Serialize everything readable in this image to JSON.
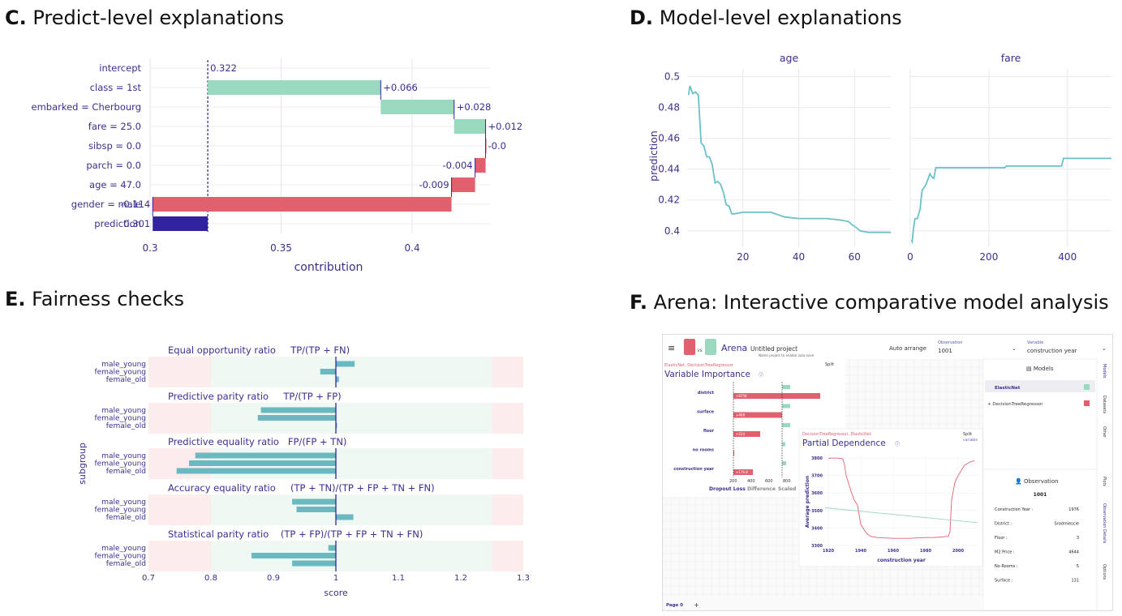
{
  "panels": {
    "c": {
      "letter": "C.",
      "title": "Predict-level explanations"
    },
    "d": {
      "letter": "D.",
      "title": "Model-level explanations"
    },
    "e": {
      "letter": "E.",
      "title": "Fairness checks"
    },
    "f": {
      "letter": "F.",
      "title": "Arena: Interactive comparative model analysis"
    }
  },
  "colors": {
    "positive": "#9ad9bf",
    "negative": "#e0606e",
    "prediction": "#3322a0",
    "text": "#3a2f8f",
    "line": "#6cc0c8",
    "fair_bar": "#6ab8c0"
  },
  "chart_data": [
    {
      "id": "breakdown",
      "type": "bar",
      "xlabel": "contribution",
      "xlim": [
        0.3,
        0.43
      ],
      "xticks": [
        "0.3",
        "0.35",
        "0.4"
      ],
      "xtick_values": [
        0.3,
        0.35,
        0.4
      ],
      "rows": [
        {
          "label": "intercept",
          "start": 0.322,
          "end": 0.322,
          "text": "0.322",
          "kind": "intercept"
        },
        {
          "label": "class = 1st",
          "start": 0.322,
          "end": 0.388,
          "text": "+0.066",
          "kind": "positive"
        },
        {
          "label": "embarked = Cherbourg",
          "start": 0.388,
          "end": 0.416,
          "text": "+0.028",
          "kind": "positive"
        },
        {
          "label": "fare = 25.0",
          "start": 0.416,
          "end": 0.428,
          "text": "+0.012",
          "kind": "positive"
        },
        {
          "label": "sibsp = 0.0",
          "start": 0.428,
          "end": 0.428,
          "text": "-0.0",
          "kind": "zero"
        },
        {
          "label": "parch = 0.0",
          "start": 0.428,
          "end": 0.424,
          "text": "-0.004",
          "kind": "negative"
        },
        {
          "label": "age = 47.0",
          "start": 0.424,
          "end": 0.415,
          "text": "-0.009",
          "kind": "negative"
        },
        {
          "label": "gender = male",
          "start": 0.415,
          "end": 0.301,
          "text": "-0.114",
          "kind": "negative"
        },
        {
          "label": "prediction",
          "start": 0.301,
          "end": 0.322,
          "text": "0.301",
          "kind": "prediction"
        }
      ]
    },
    {
      "id": "pdp",
      "type": "line",
      "ylabel": "prediction",
      "ylim": [
        0.392,
        0.505
      ],
      "yticks": [
        "0.4",
        "0.42",
        "0.44",
        "0.46",
        "0.48",
        "0.5"
      ],
      "ytick_values": [
        0.4,
        0.42,
        0.44,
        0.46,
        0.48,
        0.5
      ],
      "facets": [
        {
          "title": "age",
          "xlim": [
            0,
            73
          ],
          "xticks": [
            "20",
            "40",
            "60"
          ],
          "xtick_values": [
            20,
            40,
            60
          ],
          "x": [
            0.5,
            1,
            2,
            3,
            4,
            5,
            6,
            7,
            8,
            9,
            10,
            11,
            12,
            13,
            14,
            15,
            16,
            17,
            20,
            25,
            30,
            35,
            40,
            45,
            50,
            55,
            58,
            59,
            60,
            62,
            65,
            70,
            73
          ],
          "y": [
            0.488,
            0.494,
            0.489,
            0.49,
            0.488,
            0.457,
            0.455,
            0.448,
            0.448,
            0.443,
            0.431,
            0.432,
            0.43,
            0.425,
            0.417,
            0.416,
            0.411,
            0.411,
            0.412,
            0.412,
            0.412,
            0.409,
            0.408,
            0.408,
            0.408,
            0.407,
            0.406,
            0.404,
            0.403,
            0.4,
            0.399,
            0.399,
            0.399
          ]
        },
        {
          "title": "fare",
          "xlim": [
            0,
            512
          ],
          "xticks": [
            "0",
            "200",
            "400"
          ],
          "xtick_values": [
            0,
            200,
            400
          ],
          "x": [
            3,
            5,
            8,
            12,
            18,
            25,
            30,
            40,
            50,
            55,
            60,
            65,
            70,
            80,
            100,
            150,
            200,
            240,
            245,
            300,
            385,
            390,
            450,
            512
          ],
          "y": [
            0.394,
            0.393,
            0.401,
            0.408,
            0.408,
            0.414,
            0.426,
            0.43,
            0.437,
            0.435,
            0.434,
            0.441,
            0.441,
            0.441,
            0.441,
            0.441,
            0.441,
            0.441,
            0.442,
            0.442,
            0.442,
            0.447,
            0.447,
            0.447
          ]
        }
      ]
    },
    {
      "id": "fairness",
      "type": "bar",
      "xlabel": "score",
      "ylabel": "subgroup",
      "xlim": [
        0.7,
        1.3
      ],
      "xticks": [
        "0.7",
        "0.8",
        "0.9",
        "1",
        "1.1",
        "1.2",
        "1.3"
      ],
      "xtick_values": [
        0.7,
        0.8,
        0.9,
        1.0,
        1.1,
        1.2,
        1.3
      ],
      "fair_range": [
        0.8,
        1.25
      ],
      "subgroups": [
        "male_young",
        "female_young",
        "female_old"
      ],
      "metrics": [
        {
          "title": "Equal opportunity ratio     TP/(TP + FN)",
          "values": [
            1.03,
            0.975,
            1.005
          ]
        },
        {
          "title": "Predictive parity ratio     TP/(TP + FP)",
          "values": [
            0.88,
            0.875,
            1.0
          ]
        },
        {
          "title": "Predictive equality ratio   FP/(FP + TN)",
          "values": [
            0.775,
            0.765,
            0.745
          ]
        },
        {
          "title": "Accuracy equality ratio     (TP + TN)/(TP + FP + TN + FN)",
          "values": [
            0.93,
            0.937,
            1.028
          ]
        },
        {
          "title": "Statistical parity ratio    (TP + FP)/(TP + FP + TN + FN)",
          "values": [
            0.988,
            0.865,
            0.93
          ]
        }
      ]
    },
    {
      "id": "arena-importance",
      "type": "bar",
      "title": "Variable Importance",
      "categories": [
        "district",
        "surface",
        "floor",
        "no rooms",
        "construction year"
      ],
      "series": [
        {
          "name": "ElasticNet",
          "values": [
            null,
            null,
            null,
            null,
            null
          ]
        },
        {
          "name": "DecisionTreeRegressor",
          "values": [
            null,
            null,
            null,
            null,
            null
          ]
        }
      ],
      "red_labels": [
        "+875K",
        "+408",
        "+224",
        "",
        "+176.8"
      ],
      "xticks": [
        "200",
        "400",
        "600",
        "800"
      ]
    },
    {
      "id": "arena-pdp",
      "type": "line",
      "title": "Partial Dependence",
      "xlabel": "construction year",
      "ylabel": "Average prediction",
      "xticks": [
        "1920",
        "1940",
        "1960",
        "1980",
        "2000"
      ],
      "yticks": [
        "3300",
        "3400",
        "3500",
        "3600",
        "3700",
        "3800"
      ],
      "xlim": [
        1918,
        2012
      ],
      "ylim": [
        3290,
        3810
      ],
      "series": [
        {
          "name": "DecisionTreeRegressor",
          "x": [
            1920,
            1922,
            1926,
            1929,
            1930,
            1931,
            1934,
            1936,
            1938,
            1940,
            1942,
            1944,
            1946,
            1950,
            1960,
            1970,
            1980,
            1985,
            1990,
            1992,
            1994,
            1995,
            1996,
            1998,
            2000,
            2002,
            2004,
            2006,
            2008,
            2010
          ],
          "y": [
            3797,
            3800,
            3800,
            3795,
            3760,
            3700,
            3610,
            3560,
            3530,
            3420,
            3390,
            3365,
            3352,
            3345,
            3340,
            3340,
            3345,
            3345,
            3348,
            3350,
            3352,
            3380,
            3560,
            3660,
            3700,
            3730,
            3760,
            3770,
            3780,
            3785
          ]
        },
        {
          "name": "ElasticNet",
          "x": [
            1918,
            2012
          ],
          "y": [
            3515,
            3430
          ]
        }
      ]
    }
  ],
  "arena": {
    "menu_icon": "≡",
    "vs": "vs",
    "app_name": "Arena",
    "project_name": "Untitled project",
    "project_hint": "Name project to enable auto-save",
    "auto_arrange": "Auto arrange",
    "observation_label": "Observation",
    "observation_value": "1001",
    "variable_label": "Variable",
    "variable_value": "construction year",
    "vi_models": "ElasticNet, DecisionTreeRegressor",
    "vi_title": "Variable Importance",
    "split_label": "Split",
    "vi_footer": [
      "Dropout Loss",
      "Difference",
      "Scaled"
    ],
    "pd_models": "DecisionTreeRegressor, ElasticNet",
    "pd_title": "Partial Dependence",
    "split_variable": "variable",
    "models_header": "Models",
    "models": [
      "ElasticNet",
      "DecisionTreeRegressor"
    ],
    "observation_header": "Observation",
    "obs_id": "1001",
    "obs_rows": [
      {
        "k": "Construction Year :",
        "v": "1976"
      },
      {
        "k": "District :",
        "v": "Srodmiescie"
      },
      {
        "k": "Floor :",
        "v": "3"
      },
      {
        "k": "M2 Price :",
        "v": "4644"
      },
      {
        "k": "No Rooms :",
        "v": "5"
      },
      {
        "k": "Surface :",
        "v": "131"
      }
    ],
    "side_tabs": [
      "Models",
      "Datasets",
      "Other",
      "Plots",
      "Observation Details",
      "Options"
    ],
    "page_tab": "Page 0",
    "add_page": "+"
  }
}
